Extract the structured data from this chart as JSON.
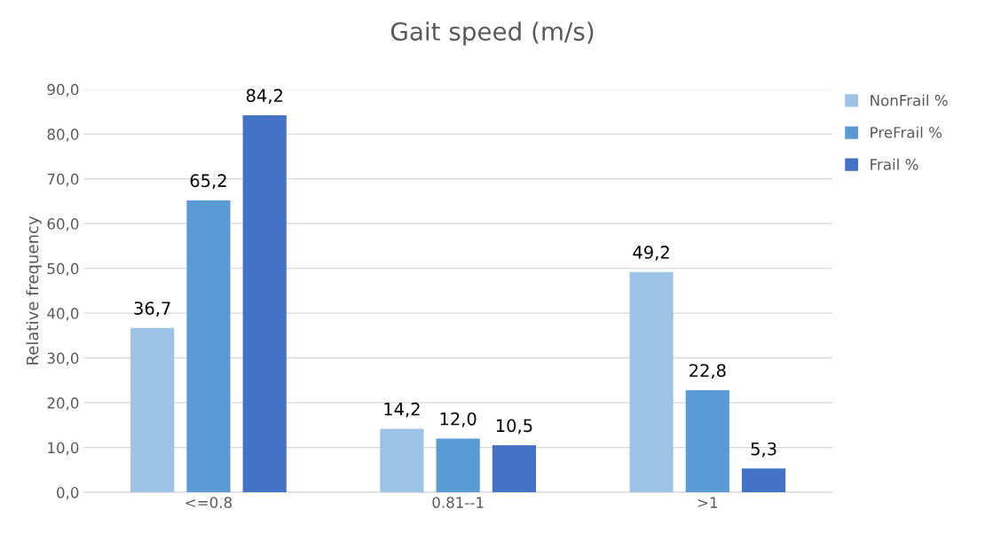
{
  "chart_data": {
    "type": "bar",
    "title": "Gait speed (m/s)",
    "ylabel": "Relative frequency",
    "categories": [
      "<=0.8",
      "0.81--1",
      ">1"
    ],
    "series": [
      {
        "name": "NonFrail %",
        "color": "#9dc3e6",
        "values": [
          36.7,
          14.2,
          49.2
        ],
        "value_labels": [
          "36,7",
          "14,2",
          "49,2"
        ]
      },
      {
        "name": "PreFrail %",
        "color": "#5b9bd5",
        "values": [
          65.2,
          12.0,
          22.8
        ],
        "value_labels": [
          "65,2",
          "12,0",
          "22,8"
        ]
      },
      {
        "name": "Frail %",
        "color": "#4472c4",
        "values": [
          84.2,
          10.5,
          5.3
        ],
        "value_labels": [
          "84,2",
          "10,5",
          "5,3"
        ]
      }
    ],
    "ylim": [
      0,
      90
    ],
    "yticks": [
      {
        "value": 0,
        "label": "0,0"
      },
      {
        "value": 10,
        "label": "10,0"
      },
      {
        "value": 20,
        "label": "20,0"
      },
      {
        "value": 30,
        "label": "30,0"
      },
      {
        "value": 40,
        "label": "40,0"
      },
      {
        "value": 50,
        "label": "50,0"
      },
      {
        "value": 60,
        "label": "60,0"
      },
      {
        "value": 70,
        "label": "70,0"
      },
      {
        "value": 80,
        "label": "80,0"
      },
      {
        "value": 90,
        "label": "90,0"
      }
    ],
    "grid": "y",
    "legend": "top right"
  }
}
